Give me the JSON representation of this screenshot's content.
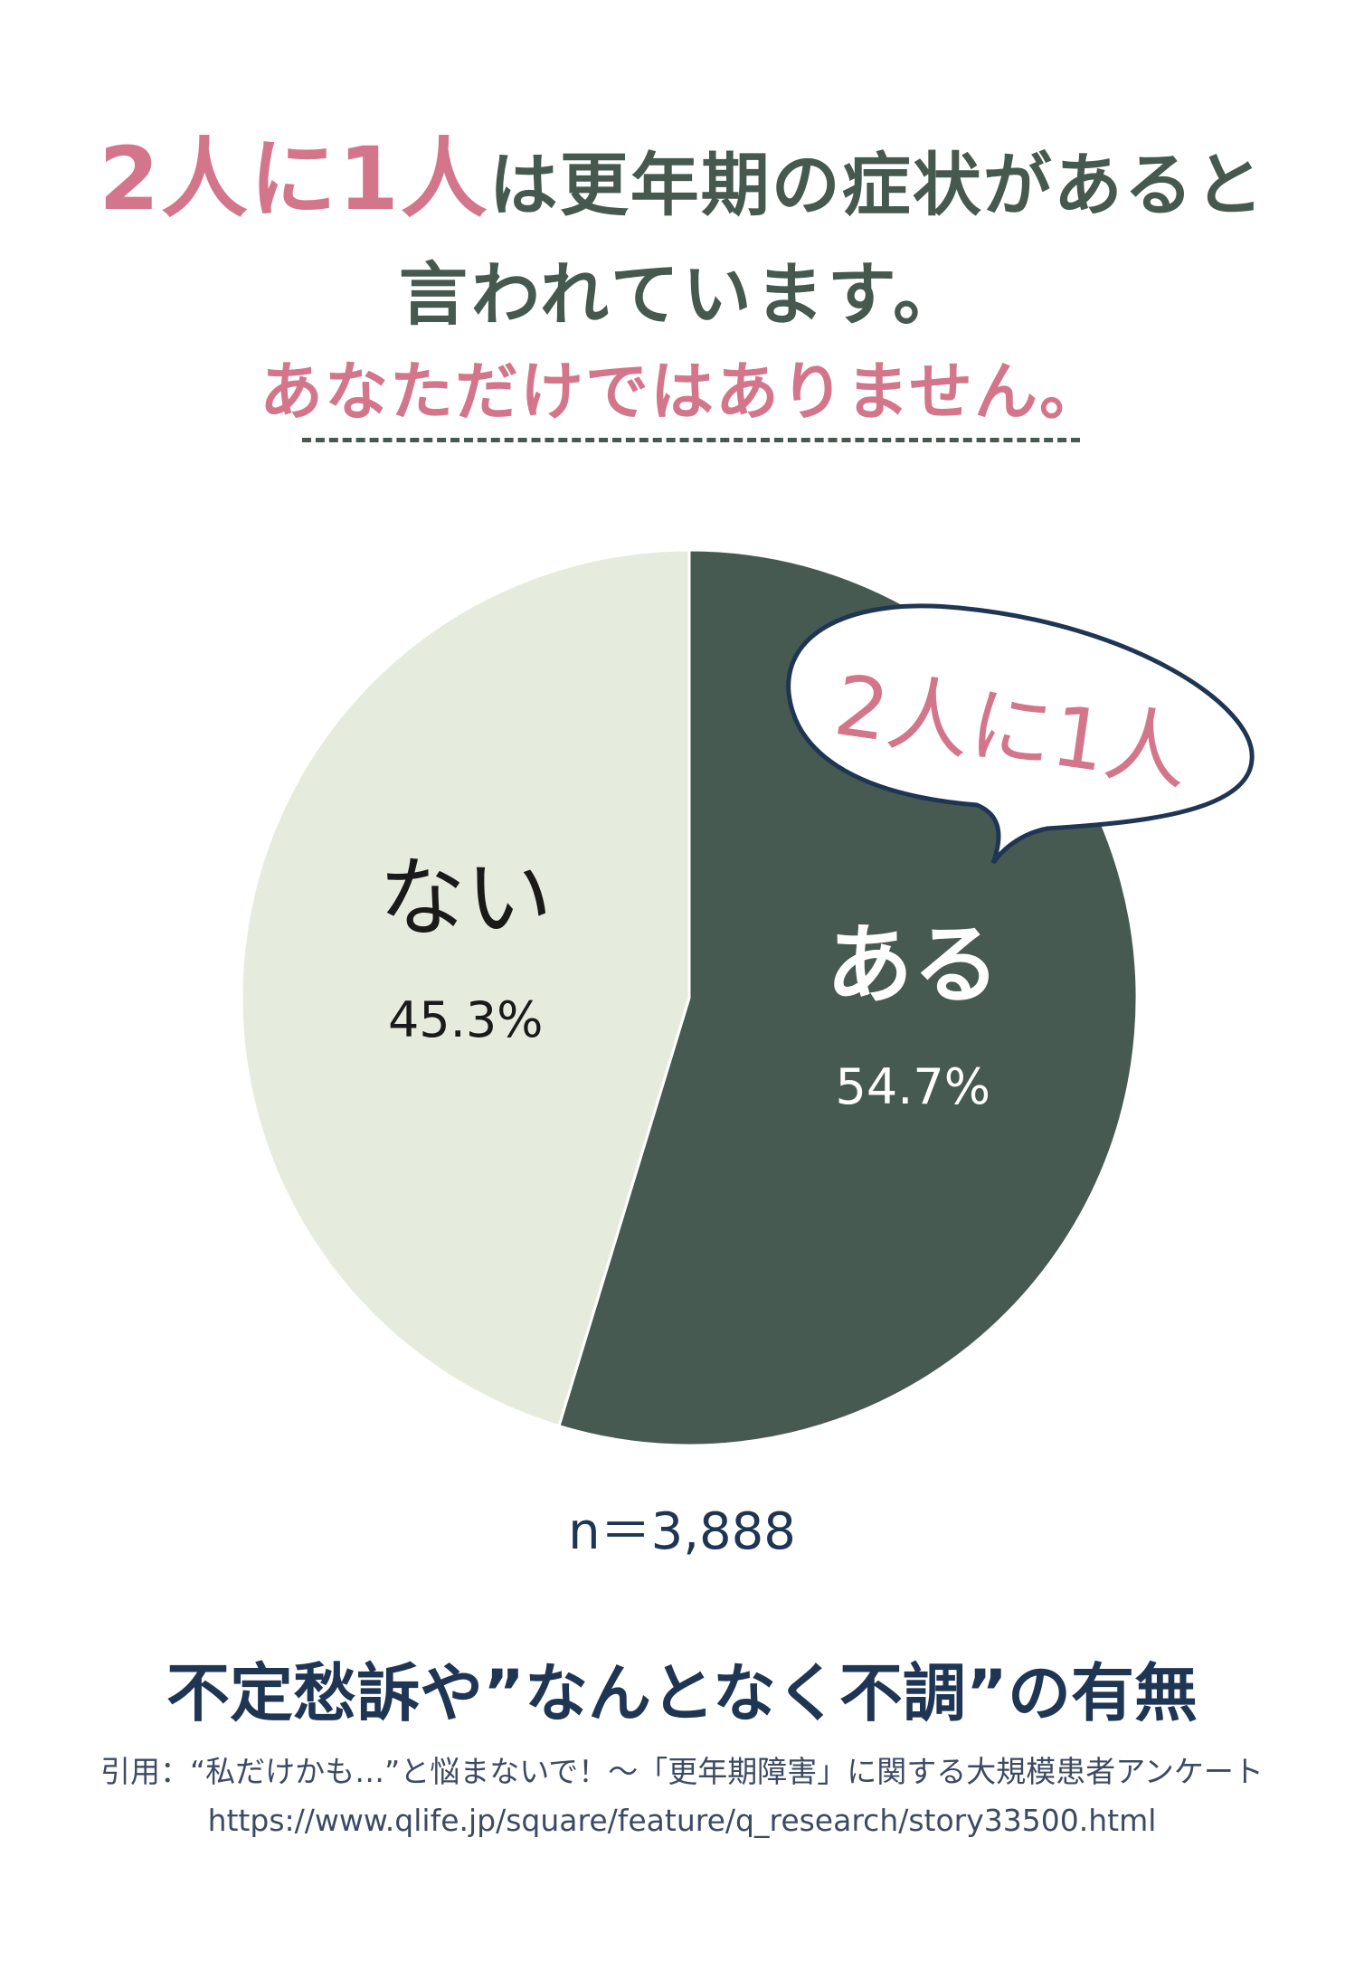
{
  "headline": {
    "accent_1": "2人に1人",
    "rest": "は更年期の症状があると",
    "line2": "言われています。",
    "line3": "あなただけではありません。"
  },
  "bubble": {
    "text": "2人に1人"
  },
  "chart_data": {
    "type": "pie",
    "title": "不定愁訴や”なんとなく不調”の有無",
    "slices": [
      {
        "label": "ある",
        "value": 54.7,
        "display": "54.7%",
        "color": "#475a51"
      },
      {
        "label": "ない",
        "value": 45.3,
        "display": "45.3%",
        "color": "#e6ecdd"
      }
    ],
    "note": "n＝3,888"
  },
  "colors": {
    "accent": "#d4768b",
    "dark_green": "#475a51",
    "light_green": "#e6ecdd",
    "navy": "#1f3554"
  },
  "source": {
    "citation": "引用：“私だけかも…”と悩まないで！～「更年期障害」に関する大規模患者アンケート",
    "url": "https://www.qlife.jp/square/feature/q_research/story33500.html"
  }
}
